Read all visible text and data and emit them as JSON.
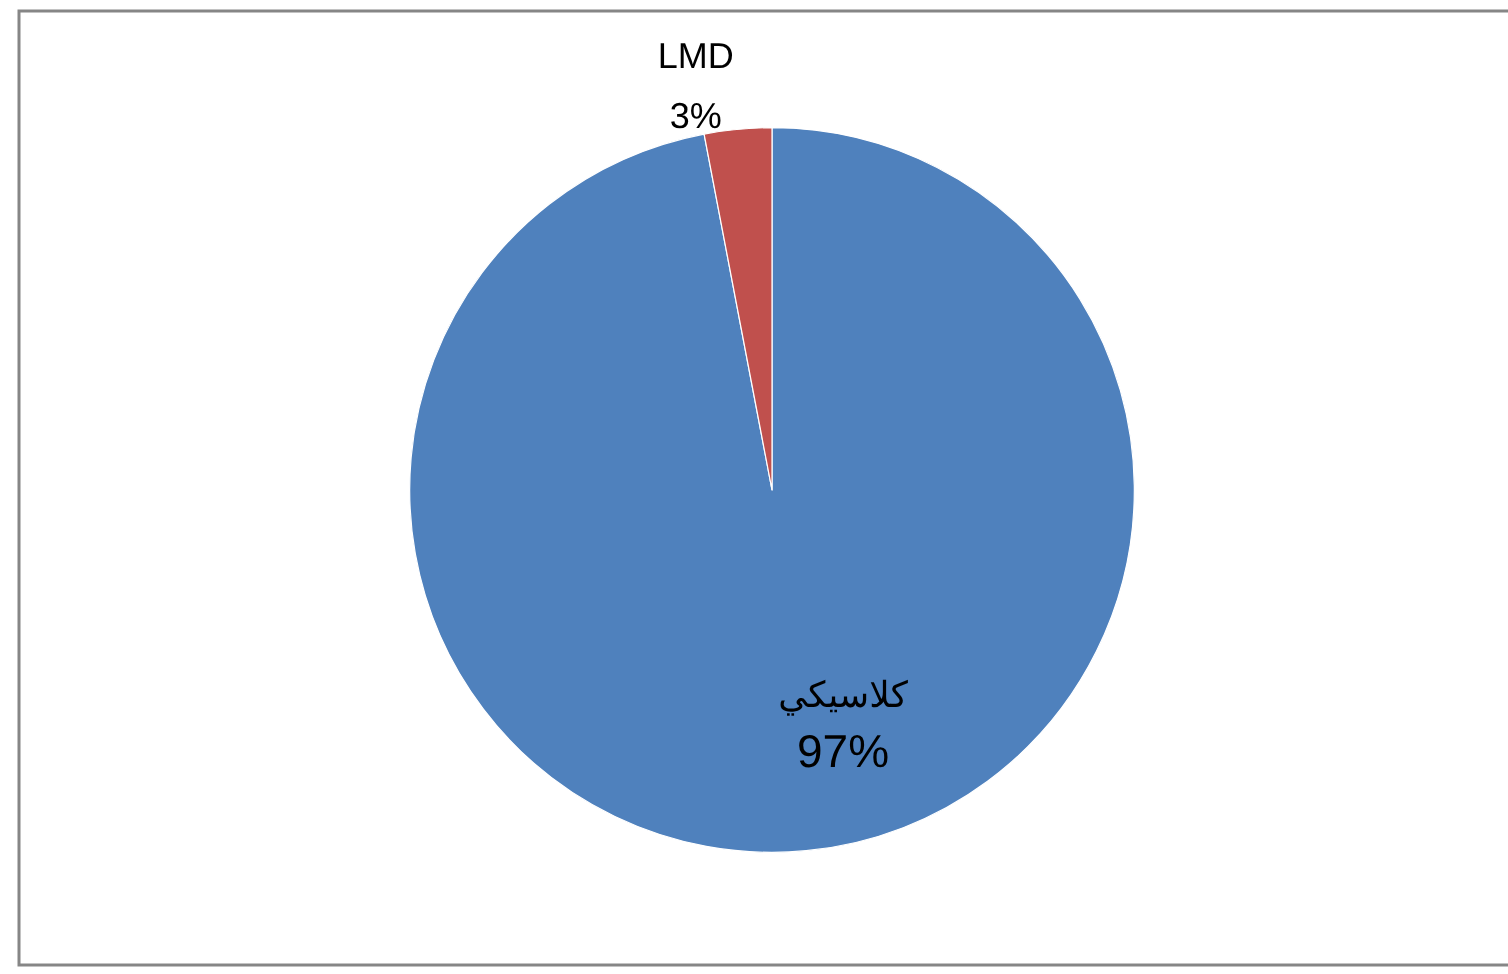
{
  "chart_data": {
    "type": "pie",
    "categories": [
      "كلاسيكي",
      "LMD"
    ],
    "values": [
      97,
      3
    ],
    "colors": [
      "#4f81bd",
      "#c0504d"
    ],
    "value_labels": [
      "97%",
      "3%"
    ]
  }
}
